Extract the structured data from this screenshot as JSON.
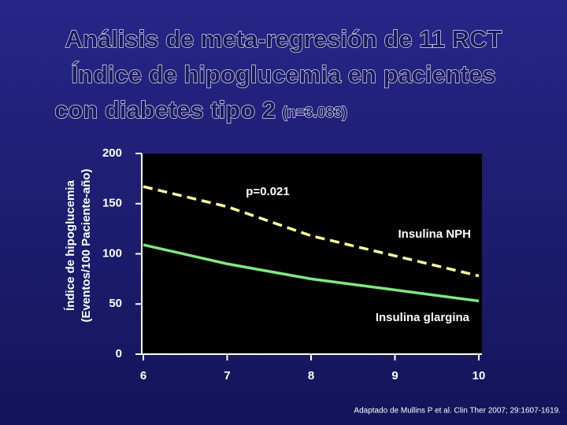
{
  "chart_data": {
    "type": "line",
    "title": [
      "Análisis de meta-regresión de 11 RCT",
      "Índice de hipoglucemia en pacientes",
      "con diabetes tipo 2"
    ],
    "subtitle": "(n=3.083)",
    "y_label": [
      "Índice de hipoglucemia",
      "(Eventos/100 Paciente-año)"
    ],
    "annotation": "p=0.021",
    "source": "Adaptado de Mullins P et al. Clin Ther 2007; 29:1607-1619.",
    "x": [
      6,
      7,
      8,
      9,
      10
    ],
    "xlim": [
      6,
      10
    ],
    "xticks": [
      6,
      7,
      8,
      9,
      10
    ],
    "ylim": [
      0,
      200
    ],
    "yticks": [
      0,
      50,
      100,
      150,
      200
    ],
    "series": [
      {
        "name": "Insulina NPH",
        "color": "#ffff99",
        "dashed": true,
        "values": [
          167,
          147,
          118,
          98,
          78
        ]
      },
      {
        "name": "Insulina glargina",
        "color": "#80e880",
        "dashed": false,
        "values": [
          109,
          90,
          75,
          64,
          53
        ]
      }
    ]
  }
}
